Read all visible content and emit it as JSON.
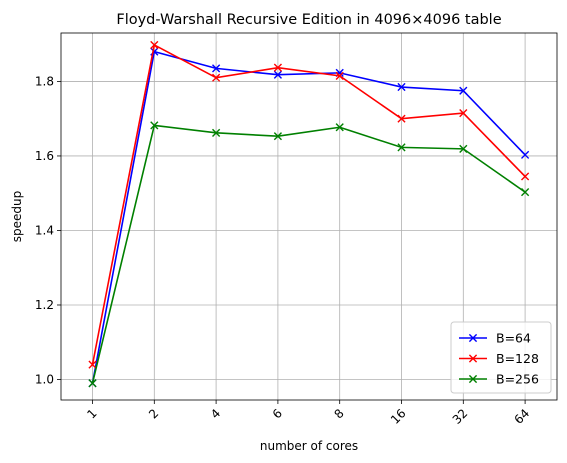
{
  "chart_data": {
    "type": "line",
    "title": "Floyd-Warshall Recursive Edition in 4096×4096 table",
    "xlabel": "number of cores",
    "ylabel": "speedup",
    "categories": [
      "1",
      "2",
      "4",
      "6",
      "8",
      "16",
      "32",
      "64"
    ],
    "ylim": [
      0.945,
      1.93
    ],
    "yticks": [
      "1.0",
      "1.2",
      "1.4",
      "1.6",
      "1.8"
    ],
    "grid": true,
    "legend_position": "lower right",
    "marker": "x",
    "series": [
      {
        "name": "B=64",
        "color": "#0000ff",
        "values": [
          0.99,
          1.88,
          1.835,
          1.818,
          1.823,
          1.785,
          1.775,
          1.603
        ]
      },
      {
        "name": "B=128",
        "color": "#ff0000",
        "values": [
          1.04,
          1.898,
          1.81,
          1.837,
          1.815,
          1.7,
          1.715,
          1.545
        ]
      },
      {
        "name": "B=256",
        "color": "#008000",
        "values": [
          0.99,
          1.682,
          1.662,
          1.653,
          1.677,
          1.623,
          1.619,
          1.503
        ]
      }
    ]
  }
}
